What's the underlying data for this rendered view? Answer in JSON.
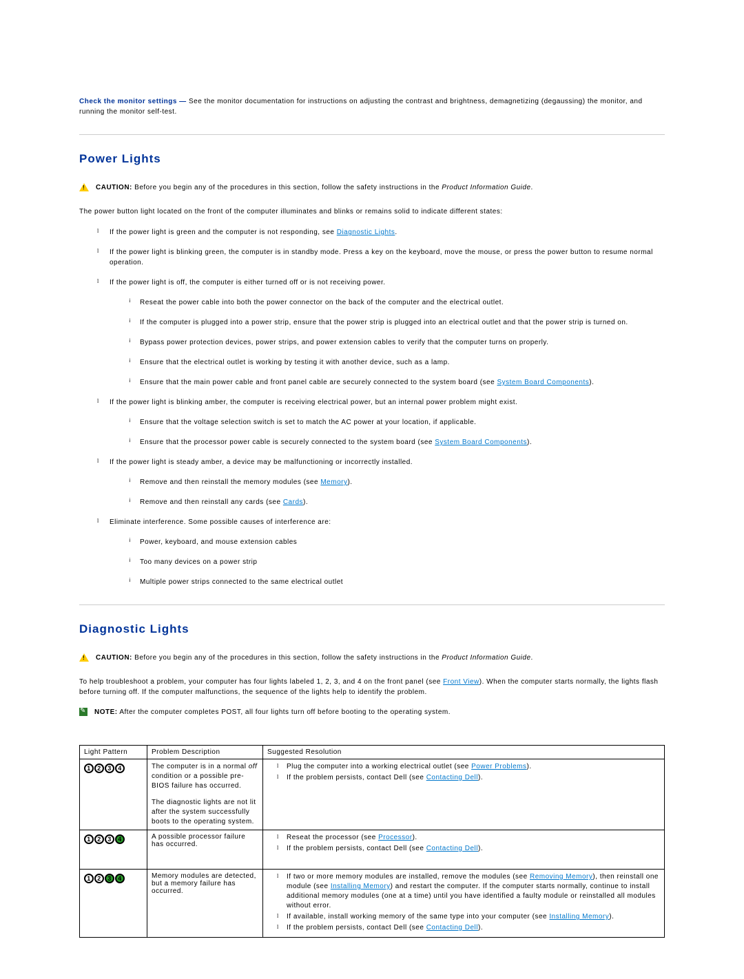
{
  "intro": {
    "lead": "Check the monitor settings —",
    "text": " See the monitor documentation for instructions on adjusting the contrast and brightness, demagnetizing (degaussing) the monitor, and running the monitor self-test."
  },
  "section_power": {
    "heading": "Power Lights",
    "caution_label": "CAUTION:",
    "caution_text_a": " Before you begin any of the procedures in this section, follow the safety instructions in the ",
    "caution_italic": "Product Information Guide",
    "caution_text_b": ".",
    "para1": "The power button light located on the front of the computer illuminates and blinks or remains solid to indicate different states:",
    "li1_a": "If the power light is green and the computer is not responding, see ",
    "li1_link": "Diagnostic Lights",
    "li1_b": ".",
    "li2": "If the power light is blinking green, the computer is in standby mode. Press a key on the keyboard, move the mouse, or press the power button to resume normal operation.",
    "li3": "If the power light is off, the computer is either turned off or is not receiving power.",
    "li3_s1": "Reseat the power cable into both the power connector on the back of the computer and the electrical outlet.",
    "li3_s2": "If the computer is plugged into a power strip, ensure that the power strip is plugged into an electrical outlet and that the power strip is turned on.",
    "li3_s3": "Bypass power protection devices, power strips, and power extension cables to verify that the computer turns on properly.",
    "li3_s4": "Ensure that the electrical outlet is working by testing it with another device, such as a lamp.",
    "li3_s5_a": "Ensure that the main power cable and front panel cable are securely connected to the system board (see ",
    "li3_s5_link": "System Board Components",
    "li3_s5_b": ").",
    "li4": "If the power light is blinking amber, the computer is receiving electrical power, but an internal power problem might exist.",
    "li4_s1": "Ensure that the voltage selection switch is set to match the AC power at your location, if applicable.",
    "li4_s2_a": "Ensure that the processor power cable is securely connected to the system board (see ",
    "li4_s2_link": "System Board Components",
    "li4_s2_b": ").",
    "li5": "If the power light is steady amber, a device may be malfunctioning or incorrectly installed.",
    "li5_s1_a": "Remove and then reinstall the memory modules (see ",
    "li5_s1_link": "Memory",
    "li5_s1_b": ").",
    "li5_s2_a": "Remove and then reinstall any cards (see ",
    "li5_s2_link": "Cards",
    "li5_s2_b": ").",
    "li6": "Eliminate interference. Some possible causes of interference are:",
    "li6_s1": "Power, keyboard, and mouse extension cables",
    "li6_s2": "Too many devices on a power strip",
    "li6_s3": "Multiple power strips connected to the same electrical outlet"
  },
  "section_diag": {
    "heading": "Diagnostic Lights",
    "caution_label": "CAUTION:",
    "caution_text_a": " Before you begin any of the procedures in this section, follow the safety instructions in the ",
    "caution_italic": "Product Information Guide",
    "caution_text_b": ".",
    "para1_a": "To help troubleshoot a problem, your computer has four lights labeled 1, 2, 3, and 4 on the front panel (see ",
    "para1_link": "Front View",
    "para1_b": "). When the computer starts normally, the lights flash before turning off. If the computer malfunctions, the sequence of the lights help to identify the problem.",
    "note_label": "NOTE:",
    "note_text": " After the computer completes POST, all four lights turn off before booting to the operating system.",
    "th1": "Light Pattern",
    "th2": "Problem Description",
    "th3": "Suggested Resolution",
    "row1": {
      "pattern": [
        "off",
        "off",
        "off",
        "off"
      ],
      "desc_a": "The computer is in a normal ",
      "desc_off": "off",
      "desc_b": " condition or a possible pre-BIOS failure has occurred.",
      "desc2": "The diagnostic lights are not lit after the system successfully boots to the operating system.",
      "res1_a": "Plug the computer into a working electrical outlet (see ",
      "res1_link": "Power Problems",
      "res1_b": ").",
      "res2_a": "If the problem persists, contact Dell (see ",
      "res2_link": "Contacting Dell",
      "res2_b": ")."
    },
    "row2": {
      "pattern": [
        "off",
        "off",
        "off",
        "on"
      ],
      "desc": "A possible processor failure has occurred.",
      "res1_a": "Reseat the processor (see ",
      "res1_link": "Processor",
      "res1_b": ").",
      "res2_a": "If the problem persists, contact Dell (see ",
      "res2_link": "Contacting Dell",
      "res2_b": ")."
    },
    "row3": {
      "pattern": [
        "off",
        "off",
        "on",
        "on"
      ],
      "desc": "Memory modules are detected, but a memory failure has occurred.",
      "res1_a": "If two or more memory modules are installed, remove the modules (see ",
      "res1_link1": "Removing Memory",
      "res1_b": "), then reinstall one module (see ",
      "res1_link2": "Installing Memory",
      "res1_c": ") and restart the computer. If the computer starts normally, continue to install additional memory modules (one at a time) until you have identified a faulty module or reinstalled all modules without error.",
      "res2_a": "If available, install working memory of the same type into your computer (see ",
      "res2_link": "Installing Memory",
      "res2_b": ").",
      "res3_a": "If the problem persists, contact Dell (see ",
      "res3_link": "Contacting Dell",
      "res3_b": ")."
    }
  },
  "colors": {
    "heading": "#003399",
    "link": "#0077cc",
    "light_on": "#2b9e2b"
  }
}
